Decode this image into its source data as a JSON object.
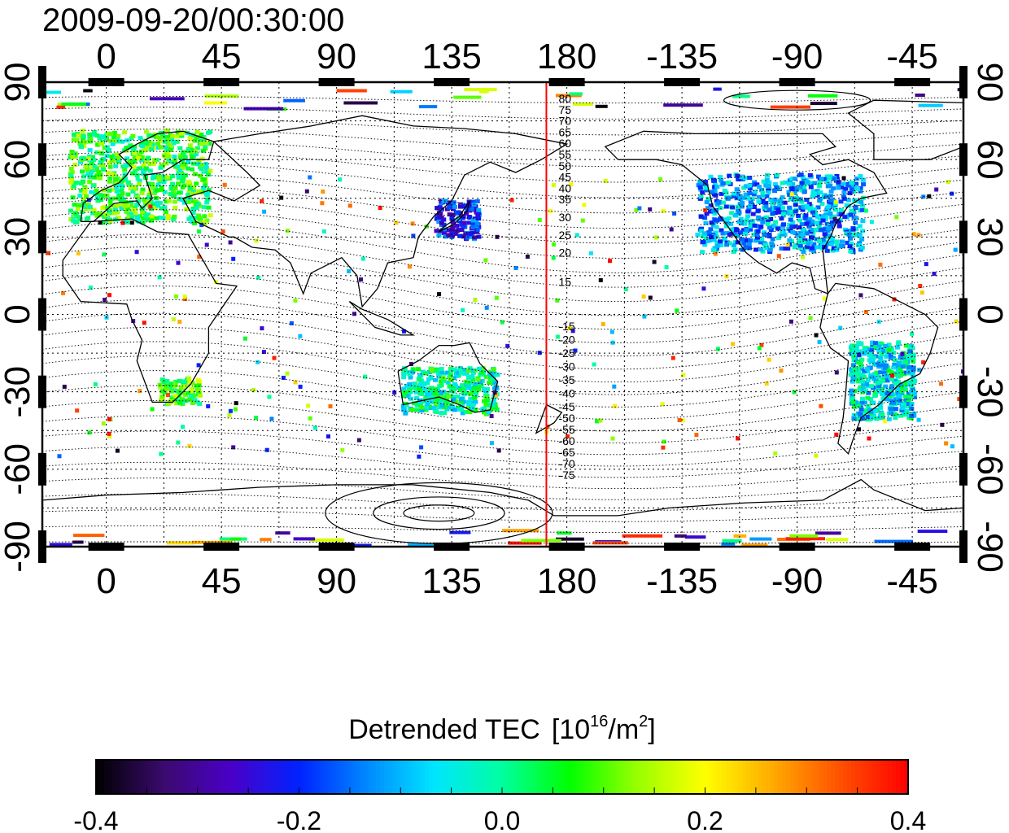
{
  "timestamp": "2009-09-20/00:30:00",
  "map": {
    "lon_range": [
      -25,
      335
    ],
    "lat_range": [
      -90,
      90
    ],
    "grid": true,
    "x_ticks": [
      {
        "lon": 0,
        "label": "0"
      },
      {
        "lon": 45,
        "label": "45"
      },
      {
        "lon": 90,
        "label": "90"
      },
      {
        "lon": 135,
        "label": "135"
      },
      {
        "lon": 180,
        "label": "180"
      },
      {
        "lon": 225,
        "label": "-135"
      },
      {
        "lon": 270,
        "label": "-90"
      },
      {
        "lon": 315,
        "label": "-45"
      }
    ],
    "y_ticks_left": [
      {
        "lat": 90,
        "label": "90"
      },
      {
        "lat": 60,
        "label": "60"
      },
      {
        "lat": 30,
        "label": "30"
      },
      {
        "lat": 0,
        "label": "0"
      },
      {
        "lat": -30,
        "label": "-30"
      },
      {
        "lat": -60,
        "label": "-60"
      },
      {
        "lat": -90,
        "label": "-90"
      }
    ],
    "y_ticks_right": [
      {
        "lat": 90,
        "label": "90"
      },
      {
        "lat": 60,
        "label": "60"
      },
      {
        "lat": 30,
        "label": "30"
      },
      {
        "lat": 0,
        "label": "0"
      },
      {
        "lat": -30,
        "label": "-30"
      },
      {
        "lat": -60,
        "label": "-60"
      },
      {
        "lat": -90,
        "label": "-90"
      }
    ],
    "terminator_lon": 172,
    "terminator_color": "#ff0000",
    "contour_labels_north": [
      "80",
      "75",
      "70",
      "65",
      "60",
      "55",
      "50",
      "45",
      "40",
      "35",
      "30",
      "25",
      "20",
      "15"
    ],
    "contour_labels_south": [
      "-15",
      "-20",
      "-25",
      "-30",
      "-35",
      "-40",
      "-45",
      "-50",
      "-55",
      "-60",
      "-65",
      "-70",
      "-75"
    ]
  },
  "colorbar": {
    "title": "Detrended TEC",
    "unit_open": "[10",
    "unit_exp": "16",
    "unit_mid": "/m",
    "unit_exp2": "2",
    "unit_close": "]",
    "min": -0.4,
    "max": 0.4,
    "ticks": [
      "-0.4",
      "-0.2",
      "0.0",
      "0.2",
      "0.4"
    ],
    "colors": [
      "#000000",
      "#3b0a6e",
      "#4a00c8",
      "#0022ff",
      "#0088ff",
      "#00e5ff",
      "#00ffa0",
      "#00ff00",
      "#99ff00",
      "#ffff00",
      "#ffaa00",
      "#ff5000",
      "#ff0000"
    ]
  },
  "chart_data": {
    "type": "scatter",
    "title": "2009-09-20/00:30:00",
    "xlabel": "",
    "ylabel": "",
    "xlim": [
      -25,
      335
    ],
    "ylim": [
      -90,
      90
    ],
    "value_label": "Detrended TEC [10^16/m^2]",
    "value_range": [
      -0.4,
      0.4
    ],
    "regions": [
      {
        "name": "Europe",
        "lon": [
          -15,
          40
        ],
        "lat": [
          36,
          72
        ],
        "value": 0.06
      },
      {
        "name": "North America",
        "lon": [
          230,
          295
        ],
        "lat": [
          25,
          55
        ],
        "value": -0.12
      },
      {
        "name": "East Asia",
        "lon": [
          128,
          145
        ],
        "lat": [
          30,
          45
        ],
        "value": -0.2
      },
      {
        "name": "Australia",
        "lon": [
          115,
          152
        ],
        "lat": [
          -38,
          -20
        ],
        "value": 0.0
      },
      {
        "name": "South America",
        "lon": [
          290,
          315
        ],
        "lat": [
          -40,
          -10
        ],
        "value": -0.05
      },
      {
        "name": "Southern Africa",
        "lon": [
          20,
          36
        ],
        "lat": [
          -34,
          -24
        ],
        "value": 0.08
      }
    ]
  }
}
